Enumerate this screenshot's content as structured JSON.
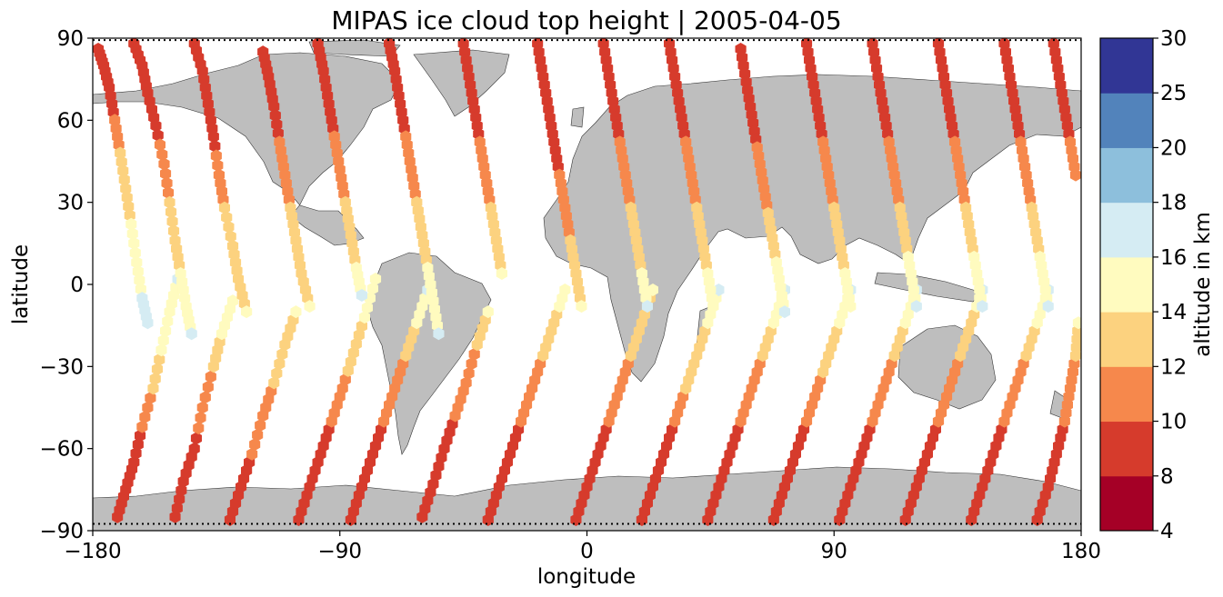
{
  "chart_data": {
    "type": "scatter",
    "title": "MIPAS ice cloud top height | 2005-04-05",
    "xlabel": "longitude",
    "ylabel": "latitude",
    "xlim": [
      -180,
      180
    ],
    "ylim": [
      -90,
      90
    ],
    "xticks": [
      -180,
      -90,
      0,
      90,
      180
    ],
    "yticks": [
      -90,
      -60,
      -30,
      0,
      30,
      60,
      90
    ],
    "xtick_labels": [
      "−180",
      "−90",
      "0",
      "90",
      "180"
    ],
    "ytick_labels": [
      "−90",
      "−60",
      "−30",
      "0",
      "30",
      "60",
      "90"
    ],
    "grid": false,
    "colorbar": {
      "label": "altitude in km",
      "tick_values": [
        4,
        8,
        10,
        12,
        14,
        16,
        18,
        20,
        25,
        30
      ],
      "tick_labels": [
        "4",
        "8",
        "10",
        "12",
        "14",
        "16",
        "18",
        "20",
        "25",
        "30"
      ],
      "colors": [
        "#a50026",
        "#d73027",
        "#f46d43",
        "#fdae61",
        "#fee090",
        "#e0f3f8",
        "#abd9e9",
        "#74add1",
        "#4575b4",
        "#313695"
      ],
      "display_colors": [
        "#a50026",
        "#d63b2c",
        "#f6884c",
        "#fcd27f",
        "#fffbbf",
        "#d5ecf3",
        "#8dbfdc",
        "#5283bb",
        "#313695"
      ]
    },
    "land_color": "#bebebe",
    "tracks": [
      {
        "pass": "desc",
        "lon": [
          -178,
          -176,
          -174,
          -172,
          -170,
          -168,
          -166,
          -164,
          -162,
          -160
        ],
        "lat": [
          86,
          80,
          72,
          60,
          48,
          35,
          22,
          8,
          -5,
          -14
        ],
        "alt": [
          8,
          8,
          8,
          10,
          12,
          13,
          14,
          15,
          16,
          16
        ]
      },
      {
        "pass": "asc",
        "lon": [
          -171,
          -168,
          -165,
          -162,
          -158,
          -155,
          -152,
          -149
        ],
        "lat": [
          -85,
          -75,
          -65,
          -52,
          -38,
          -24,
          -10,
          2
        ],
        "alt": [
          8,
          8,
          9,
          10,
          12,
          14,
          15,
          16
        ]
      },
      {
        "pass": "desc",
        "lon": [
          -165,
          -162,
          -160,
          -157,
          -154,
          -152,
          -150,
          -148,
          -146,
          -144
        ],
        "lat": [
          88,
          80,
          70,
          58,
          44,
          30,
          16,
          4,
          -8,
          -18
        ],
        "alt": [
          8,
          8,
          8,
          9,
          11,
          12,
          13,
          14,
          15,
          16
        ]
      },
      {
        "pass": "asc",
        "lon": [
          -150,
          -147,
          -143,
          -140,
          -136,
          -133,
          -129
        ],
        "lat": [
          -85,
          -72,
          -60,
          -45,
          -30,
          -18,
          -6
        ],
        "alt": [
          8,
          8,
          9,
          11,
          12,
          14,
          15
        ]
      },
      {
        "pass": "desc",
        "lon": [
          -143,
          -140,
          -138,
          -136,
          -134,
          -132,
          -129,
          -127,
          -124
        ],
        "lat": [
          88,
          78,
          66,
          54,
          40,
          28,
          14,
          2,
          -10
        ],
        "alt": [
          8,
          8,
          8,
          9,
          11,
          12,
          13,
          13,
          14
        ]
      },
      {
        "pass": "asc",
        "lon": [
          -130,
          -126,
          -122,
          -118,
          -114,
          -110,
          -106
        ],
        "lat": [
          -86,
          -74,
          -62,
          -48,
          -36,
          -22,
          -10
        ],
        "alt": [
          8,
          8,
          10,
          11,
          12,
          13,
          14
        ]
      },
      {
        "pass": "desc",
        "lon": [
          -118,
          -116,
          -114,
          -112,
          -110,
          -108,
          -106,
          -104,
          -101
        ],
        "lat": [
          85,
          76,
          65,
          52,
          40,
          28,
          16,
          4,
          -8
        ],
        "alt": [
          8,
          8,
          9,
          10,
          11,
          12,
          12,
          13,
          14
        ]
      },
      {
        "pass": "asc",
        "lon": [
          -105,
          -101,
          -97,
          -93,
          -89,
          -85,
          -81,
          -77
        ],
        "lat": [
          -86,
          -74,
          -62,
          -50,
          -38,
          -25,
          -12,
          2
        ],
        "alt": [
          8,
          8,
          9,
          10,
          11,
          13,
          14,
          15
        ]
      },
      {
        "pass": "desc",
        "lon": [
          -98,
          -96,
          -94,
          -92,
          -90,
          -88,
          -86,
          -84,
          -82
        ],
        "lat": [
          88,
          78,
          66,
          54,
          42,
          30,
          18,
          6,
          -4
        ],
        "alt": [
          8,
          8,
          9,
          10,
          11,
          12,
          13,
          14,
          16
        ]
      },
      {
        "pass": "asc",
        "lon": [
          -86,
          -82,
          -78,
          -74,
          -70,
          -66,
          -62,
          -58
        ],
        "lat": [
          -86,
          -74,
          -62,
          -50,
          -38,
          -26,
          -14,
          -2
        ],
        "alt": [
          8,
          8,
          9,
          10,
          11,
          12,
          14,
          16
        ]
      },
      {
        "pass": "desc",
        "lon": [
          -72,
          -70,
          -68,
          -66,
          -64,
          -62,
          -60,
          -58,
          -56,
          -54
        ],
        "lat": [
          88,
          78,
          66,
          54,
          42,
          30,
          18,
          6,
          -6,
          -18
        ],
        "alt": [
          8,
          8,
          8,
          10,
          11,
          12,
          13,
          14,
          15,
          16
        ]
      },
      {
        "pass": "asc",
        "lon": [
          -60,
          -56,
          -52,
          -48,
          -44,
          -40,
          -36
        ],
        "lat": [
          -85,
          -73,
          -60,
          -48,
          -36,
          -22,
          -10
        ],
        "alt": [
          8,
          8,
          9,
          10,
          11,
          12,
          14
        ]
      },
      {
        "pass": "desc",
        "lon": [
          -45,
          -43,
          -41,
          -39,
          -37,
          -35,
          -33,
          -31
        ],
        "lat": [
          88,
          76,
          64,
          52,
          40,
          28,
          16,
          4
        ],
        "alt": [
          8,
          8,
          9,
          10,
          11,
          12,
          13,
          14
        ]
      },
      {
        "pass": "asc",
        "lon": [
          -36,
          -32,
          -28,
          -24,
          -20,
          -16,
          -12,
          -8
        ],
        "lat": [
          -86,
          -74,
          -62,
          -50,
          -38,
          -26,
          -14,
          -2
        ],
        "alt": [
          8,
          8,
          9,
          10,
          11,
          12,
          13,
          15
        ]
      },
      {
        "pass": "desc",
        "lon": [
          -18,
          -16,
          -14,
          -12,
          -10,
          -8,
          -6,
          -4,
          -2
        ],
        "lat": [
          88,
          76,
          64,
          52,
          40,
          28,
          16,
          4,
          -8
        ],
        "alt": [
          8,
          8,
          8,
          9,
          10,
          11,
          12,
          13,
          14
        ]
      },
      {
        "pass": "asc",
        "lon": [
          -4,
          0,
          4,
          8,
          12,
          16,
          20,
          24
        ],
        "lat": [
          -86,
          -74,
          -62,
          -50,
          -38,
          -26,
          -14,
          -2
        ],
        "alt": [
          8,
          8,
          9,
          10,
          11,
          12,
          13,
          14
        ]
      },
      {
        "pass": "desc",
        "lon": [
          6,
          8,
          10,
          12,
          14,
          16,
          18,
          20,
          22
        ],
        "lat": [
          88,
          76,
          64,
          52,
          40,
          28,
          16,
          4,
          -8
        ],
        "alt": [
          8,
          8,
          8,
          10,
          11,
          12,
          13,
          14,
          16
        ]
      },
      {
        "pass": "asc",
        "lon": [
          20,
          24,
          28,
          32,
          36,
          40,
          44,
          48
        ],
        "lat": [
          -86,
          -74,
          -62,
          -50,
          -38,
          -26,
          -14,
          -2
        ],
        "alt": [
          8,
          8,
          9,
          10,
          12,
          13,
          14,
          16
        ]
      },
      {
        "pass": "desc",
        "lon": [
          30,
          32,
          34,
          36,
          38,
          40,
          42,
          44,
          46
        ],
        "lat": [
          88,
          76,
          64,
          52,
          40,
          28,
          16,
          4,
          -8
        ],
        "alt": [
          8,
          8,
          9,
          10,
          11,
          12,
          13,
          14,
          15
        ]
      },
      {
        "pass": "asc",
        "lon": [
          44,
          48,
          52,
          56,
          60,
          64,
          68,
          72
        ],
        "lat": [
          -86,
          -74,
          -62,
          -50,
          -38,
          -26,
          -14,
          -2
        ],
        "alt": [
          8,
          8,
          9,
          10,
          11,
          12,
          14,
          16
        ]
      },
      {
        "pass": "desc",
        "lon": [
          56,
          58,
          60,
          62,
          64,
          66,
          68,
          70,
          72
        ],
        "lat": [
          86,
          74,
          62,
          50,
          38,
          26,
          14,
          2,
          -10
        ],
        "alt": [
          8,
          8,
          8,
          10,
          11,
          12,
          13,
          15,
          16
        ]
      },
      {
        "pass": "asc",
        "lon": [
          68,
          72,
          76,
          80,
          84,
          88,
          92,
          96
        ],
        "lat": [
          -86,
          -74,
          -62,
          -50,
          -38,
          -26,
          -14,
          -2
        ],
        "alt": [
          8,
          8,
          9,
          10,
          11,
          13,
          14,
          16
        ]
      },
      {
        "pass": "desc",
        "lon": [
          80,
          82,
          84,
          86,
          88,
          90,
          92,
          94,
          96
        ],
        "lat": [
          88,
          76,
          64,
          52,
          40,
          28,
          16,
          4,
          -8
        ],
        "alt": [
          8,
          8,
          9,
          10,
          11,
          12,
          13,
          14,
          15
        ]
      },
      {
        "pass": "asc",
        "lon": [
          92,
          96,
          100,
          104,
          108,
          112,
          116,
          120
        ],
        "lat": [
          -86,
          -74,
          -62,
          -50,
          -38,
          -26,
          -14,
          -2
        ],
        "alt": [
          8,
          8,
          9,
          10,
          11,
          12,
          14,
          16
        ]
      },
      {
        "pass": "desc",
        "lon": [
          104,
          106,
          108,
          110,
          112,
          114,
          116,
          118,
          120
        ],
        "lat": [
          88,
          76,
          64,
          52,
          40,
          28,
          16,
          4,
          -8
        ],
        "alt": [
          8,
          8,
          9,
          10,
          11,
          12,
          13,
          15,
          16
        ]
      },
      {
        "pass": "asc",
        "lon": [
          116,
          120,
          124,
          128,
          132,
          136,
          140,
          144
        ],
        "lat": [
          -86,
          -74,
          -62,
          -50,
          -38,
          -26,
          -14,
          -2
        ],
        "alt": [
          8,
          8,
          9,
          10,
          11,
          12,
          13,
          16
        ]
      },
      {
        "pass": "desc",
        "lon": [
          128,
          130,
          132,
          134,
          136,
          138,
          140,
          142,
          144
        ],
        "lat": [
          88,
          76,
          64,
          52,
          40,
          28,
          16,
          4,
          -8
        ],
        "alt": [
          8,
          8,
          9,
          10,
          11,
          12,
          13,
          15,
          16
        ]
      },
      {
        "pass": "asc",
        "lon": [
          140,
          144,
          148,
          152,
          156,
          160,
          164,
          168
        ],
        "lat": [
          -86,
          -74,
          -62,
          -50,
          -38,
          -26,
          -14,
          -2
        ],
        "alt": [
          8,
          8,
          9,
          10,
          11,
          12,
          14,
          16
        ]
      },
      {
        "pass": "desc",
        "lon": [
          152,
          154,
          156,
          158,
          160,
          162,
          164,
          166,
          168
        ],
        "lat": [
          88,
          76,
          64,
          52,
          40,
          28,
          16,
          4,
          -8
        ],
        "alt": [
          8,
          8,
          8,
          10,
          11,
          12,
          13,
          15,
          16
        ]
      },
      {
        "pass": "asc",
        "lon": [
          164,
          168,
          171,
          174,
          176,
          178,
          179
        ],
        "lat": [
          -86,
          -74,
          -62,
          -50,
          -38,
          -26,
          -14
        ],
        "alt": [
          8,
          8,
          9,
          10,
          11,
          12,
          14
        ]
      },
      {
        "pass": "desc",
        "lon": [
          170,
          172,
          174,
          176,
          178
        ],
        "lat": [
          88,
          76,
          64,
          52,
          40
        ],
        "alt": [
          8,
          8,
          9,
          10,
          11
        ]
      }
    ]
  }
}
